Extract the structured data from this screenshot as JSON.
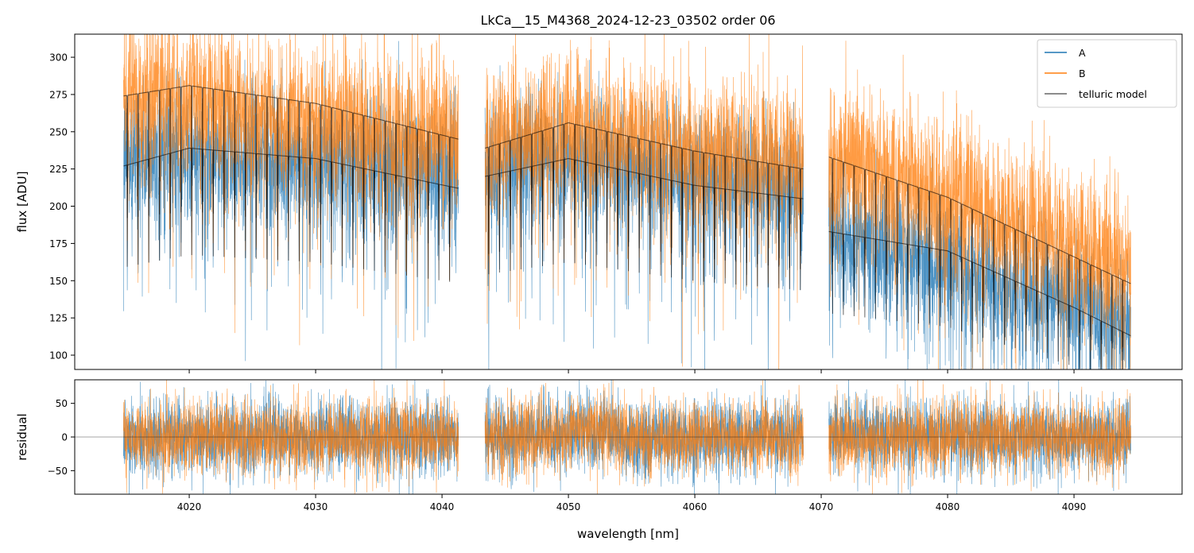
{
  "chart_data": [
    {
      "id": "flux-panel",
      "type": "line",
      "title": "LkCa__15_M4368_2024-12-23_03502  order 06",
      "xlabel": "",
      "ylabel": "flux [ADU]",
      "xlim": [
        4010.94,
        4098.55
      ],
      "ylim": [
        90.4,
        315.5
      ],
      "xticks": [
        4020,
        4030,
        4040,
        4050,
        4060,
        4070,
        4080,
        4090
      ],
      "yticks": [
        100,
        125,
        150,
        175,
        200,
        225,
        250,
        275,
        300
      ],
      "ytick_labels": [
        "100",
        "125",
        "150",
        "175",
        "200",
        "225",
        "250",
        "275",
        "300"
      ],
      "grid": false,
      "legend_position": "top-right",
      "segments": [
        {
          "x_start": 4014.8,
          "x_end": 4041.3
        },
        {
          "x_start": 4043.4,
          "x_end": 4068.6
        },
        {
          "x_start": 4070.6,
          "x_end": 4094.5
        }
      ],
      "series": [
        {
          "name": "A",
          "color": "#1f77b4",
          "kind": "noisy-spectrum",
          "continuum_points": [
            [
              4014.8,
              236
            ],
            [
              4041.3,
              225
            ],
            [
              4043.4,
              232
            ],
            [
              4050,
              232
            ],
            [
              4068.6,
              212
            ],
            [
              4070.6,
              184
            ],
            [
              4094.5,
              124
            ]
          ],
          "noise_std": 22
        },
        {
          "name": "B",
          "color": "#ff7f0e",
          "kind": "noisy-spectrum",
          "continuum_points": [
            [
              4014.8,
              278
            ],
            [
              4041.3,
              245
            ],
            [
              4043.4,
              242
            ],
            [
              4050,
              255
            ],
            [
              4068.6,
              225
            ],
            [
              4070.6,
              235
            ],
            [
              4094.5,
              160
            ]
          ],
          "noise_std": 26
        },
        {
          "name": "telluric model",
          "color": "#000000",
          "kind": "model",
          "envelopes": [
            {
              "segment": 0,
              "upper": [
                [
                  4014.8,
                  274
                ],
                [
                  4020,
                  281
                ],
                [
                  4030,
                  269
                ],
                [
                  4041.3,
                  245
                ]
              ],
              "lower": [
                [
                  4014.8,
                  227
                ],
                [
                  4020,
                  239
                ],
                [
                  4030,
                  232
                ],
                [
                  4041.3,
                  212
                ]
              ]
            },
            {
              "segment": 1,
              "upper": [
                [
                  4043.4,
                  239
                ],
                [
                  4050,
                  256
                ],
                [
                  4060,
                  237
                ],
                [
                  4068.6,
                  225
                ]
              ],
              "lower": [
                [
                  4043.4,
                  220
                ],
                [
                  4050,
                  232
                ],
                [
                  4060,
                  214
                ],
                [
                  4068.6,
                  205
                ]
              ]
            },
            {
              "segment": 2,
              "upper": [
                [
                  4070.6,
                  233
                ],
                [
                  4080,
                  206
                ],
                [
                  4090,
                  166
                ],
                [
                  4094.5,
                  148
                ]
              ],
              "lower": [
                [
                  4070.6,
                  183
                ],
                [
                  4080,
                  170
                ],
                [
                  4090,
                  132
                ],
                [
                  4094.5,
                  113
                ]
              ]
            }
          ],
          "line_spacing_nm": 0.85
        }
      ]
    },
    {
      "id": "residual-panel",
      "type": "line",
      "title": "",
      "xlabel": "wavelength [nm]",
      "ylabel": "residual",
      "xlim": [
        4010.94,
        4098.55
      ],
      "ylim": [
        -85,
        85
      ],
      "xticks": [
        4020,
        4030,
        4040,
        4050,
        4060,
        4070,
        4080,
        4090
      ],
      "xtick_labels": [
        "4020",
        "4030",
        "4040",
        "4050",
        "4060",
        "4070",
        "4080",
        "4090"
      ],
      "yticks": [
        -50,
        0,
        50
      ],
      "ytick_labels": [
        "−50",
        "0",
        "50"
      ],
      "zero_line": 0,
      "grid": false,
      "series": [
        {
          "name": "A",
          "color": "#1f77b4",
          "kind": "residual",
          "noise_std": 28
        },
        {
          "name": "B",
          "color": "#ff7f0e",
          "kind": "residual",
          "noise_std": 28
        }
      ]
    }
  ]
}
